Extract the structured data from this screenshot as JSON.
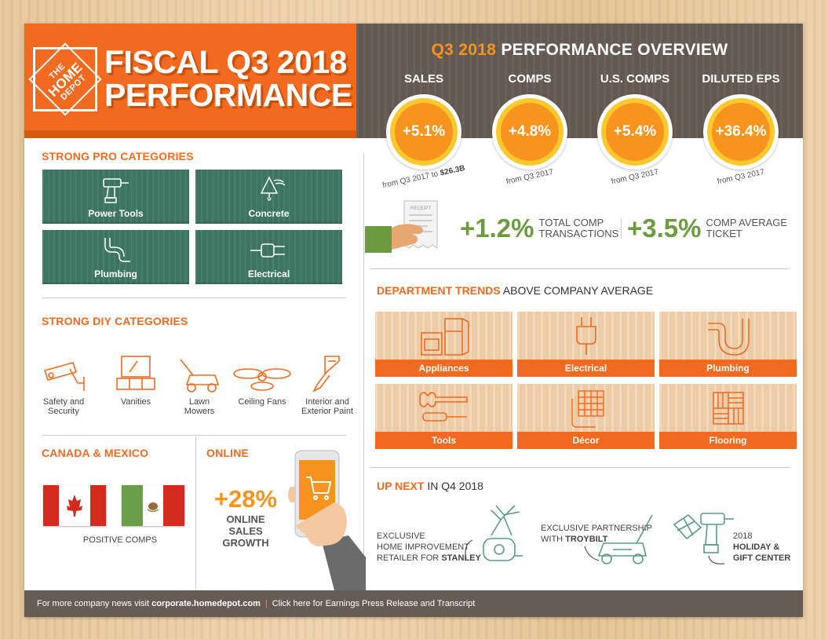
{
  "header": {
    "logo": [
      "THE",
      "HOME",
      "DEPOT"
    ],
    "title_line1": "FISCAL Q3 2018",
    "title_line2": "PERFORMANCE"
  },
  "overview": {
    "title_highlight": "Q3 2018",
    "title_rest": "PERFORMANCE OVERVIEW",
    "metrics": [
      {
        "label": "SALES",
        "value": "+5.1%",
        "sub": "from Q3 2017 to",
        "sub_bold": "$26.3B"
      },
      {
        "label": "COMPS",
        "value": "+4.8%",
        "sub": "from Q3 2017",
        "sub_bold": ""
      },
      {
        "label": "U.S. COMPS",
        "value": "+5.4%",
        "sub": "from Q3 2017",
        "sub_bold": ""
      },
      {
        "label": "DILUTED EPS",
        "value": "+36.4%",
        "sub": "from Q3 2017",
        "sub_bold": ""
      }
    ],
    "receipt_label": "RECEIPT",
    "transactions": {
      "value": "+1.2%",
      "label1": "TOTAL COMP",
      "label2": "TRANSACTIONS"
    },
    "ticket": {
      "value": "+3.5%",
      "label1": "COMP AVERAGE",
      "label2": "TICKET"
    }
  },
  "pro": {
    "heading": "STRONG PRO CATEGORIES",
    "items": [
      "Power Tools",
      "Concrete",
      "Plumbing",
      "Electrical"
    ]
  },
  "diy": {
    "heading": "STRONG DIY CATEGORIES",
    "items": [
      {
        "line1": "Safety and",
        "line2": "Security"
      },
      {
        "line1": "Vanities",
        "line2": ""
      },
      {
        "line1": "Lawn",
        "line2": "Mowers"
      },
      {
        "line1": "Ceiling Fans",
        "line2": ""
      },
      {
        "line1": "Interior and",
        "line2": "Exterior Paint"
      }
    ]
  },
  "canada": {
    "heading": "CANADA & MEXICO",
    "caption": "POSITIVE COMPS"
  },
  "online": {
    "heading": "ONLINE",
    "value": "+28%",
    "line1": "ONLINE SALES",
    "line2": "GROWTH"
  },
  "trends": {
    "heading": "DEPARTMENT TRENDS",
    "heading_rest": "ABOVE COMPANY AVERAGE",
    "items": [
      "Appliances",
      "Electrical",
      "Plumbing",
      "Tools",
      "Décor",
      "Flooring"
    ]
  },
  "upnext": {
    "heading": "UP NEXT",
    "heading_rest": "IN Q4 2018",
    "items": [
      {
        "l1": "EXCLUSIVE",
        "l2": "HOME IMPROVEMENT",
        "l3": "RETAILER FOR ",
        "l3b": "STANLEY"
      },
      {
        "l1": "EXCLUSIVE PARTNERSHIP",
        "l2": "WITH ",
        "l2b": "TROYBILT"
      },
      {
        "l1": "2018",
        "l2": "HOLIDAY &",
        "l3": "GIFT CENTER"
      }
    ]
  },
  "footer": {
    "text1": "For more company news visit ",
    "link": "corporate.homedepot.com",
    "sep": "|",
    "text2": "Click here for Earnings Press Release and Transcript"
  },
  "colors": {
    "orange": "#f26a1f",
    "gold": "#f7941d",
    "green": "#6c9b3f",
    "brown": "#675c55",
    "teal_tile": "#3f7a66"
  }
}
